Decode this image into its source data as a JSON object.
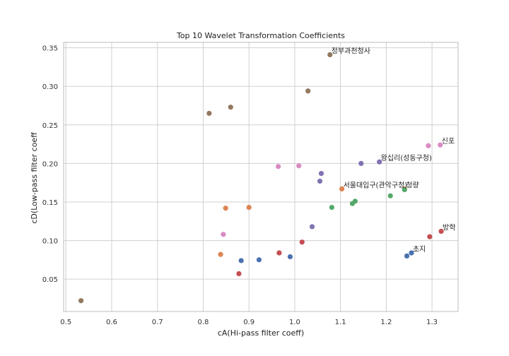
{
  "chart_data": {
    "type": "scatter",
    "title": "Top 10 Wavelet Transformation Coefficients",
    "xlabel": "cA(Hi-pass filter coeff)",
    "ylabel": "cD(Low-pass filter coeff",
    "xlim": [
      0.495,
      1.357
    ],
    "ylim": [
      0.008,
      0.357
    ],
    "xticks": [
      0.5,
      0.6,
      0.7,
      0.8,
      0.9,
      1.0,
      1.1,
      1.2,
      1.3
    ],
    "yticks": [
      0.05,
      0.1,
      0.15,
      0.2,
      0.25,
      0.3,
      0.35
    ],
    "grid": true,
    "legend": "none",
    "series": [
      {
        "color": "#4c72b0",
        "points": [
          [
            0.883,
            0.074
          ],
          [
            0.922,
            0.075
          ],
          [
            0.99,
            0.079
          ],
          [
            1.245,
            0.08
          ],
          [
            1.255,
            0.084
          ]
        ]
      },
      {
        "color": "#dd8452",
        "points": [
          [
            0.838,
            0.082
          ],
          [
            0.849,
            0.142
          ],
          [
            0.9,
            0.143
          ],
          [
            1.103,
            0.167
          ],
          [
            1.24,
            0.167
          ]
        ]
      },
      {
        "color": "#55a868",
        "points": [
          [
            1.081,
            0.143
          ],
          [
            1.126,
            0.148
          ],
          [
            1.132,
            0.151
          ],
          [
            1.209,
            0.158
          ],
          [
            1.24,
            0.166
          ]
        ]
      },
      {
        "color": "#c44e52",
        "points": [
          [
            0.878,
            0.057
          ],
          [
            0.966,
            0.084
          ],
          [
            1.016,
            0.098
          ],
          [
            1.295,
            0.105
          ],
          [
            1.32,
            0.112
          ]
        ]
      },
      {
        "color": "#8172b3",
        "points": [
          [
            1.038,
            0.118
          ],
          [
            1.055,
            0.177
          ],
          [
            1.058,
            0.187
          ],
          [
            1.145,
            0.2
          ],
          [
            1.185,
            0.202
          ]
        ]
      },
      {
        "color": "#937860",
        "points": [
          [
            0.533,
            0.022
          ],
          [
            0.813,
            0.265
          ],
          [
            0.86,
            0.273
          ],
          [
            1.029,
            0.294
          ],
          [
            1.077,
            0.341
          ]
        ]
      },
      {
        "color": "#da8bc3",
        "points": [
          [
            0.844,
            0.108
          ],
          [
            0.964,
            0.196
          ],
          [
            1.009,
            0.197
          ],
          [
            1.292,
            0.223
          ],
          [
            1.318,
            0.224
          ]
        ]
      }
    ],
    "annotations": [
      {
        "text": "정부과천청사",
        "x": 1.077,
        "y": 0.341
      },
      {
        "text": "신포",
        "x": 1.318,
        "y": 0.224
      },
      {
        "text": "왕십리(성동구청)",
        "x": 1.185,
        "y": 0.202
      },
      {
        "text": "서울대입구(관악구청)",
        "x": 1.103,
        "y": 0.167
      },
      {
        "text": "청량",
        "x": 1.24,
        "y": 0.167
      },
      {
        "text": "방학",
        "x": 1.32,
        "y": 0.112
      },
      {
        "text": "초지",
        "x": 1.255,
        "y": 0.084
      }
    ]
  }
}
